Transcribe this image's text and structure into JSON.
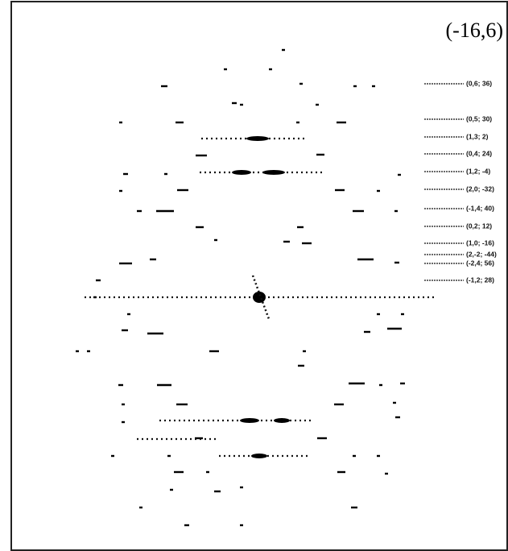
{
  "figure": {
    "title": "(-16,6)",
    "labels": [
      "(0,6; 36)",
      "(0,5; 30)",
      "(1,3; 2)",
      "(0,4; 24)",
      "(1,2; -4)",
      "(2,0; -32)",
      "(-1,4; 40)",
      "(0,2; 12)",
      "(1,0; -16)",
      "(2,-2; -44)",
      "(-2,4; 56)",
      "(-1,2; 28)"
    ]
  }
}
